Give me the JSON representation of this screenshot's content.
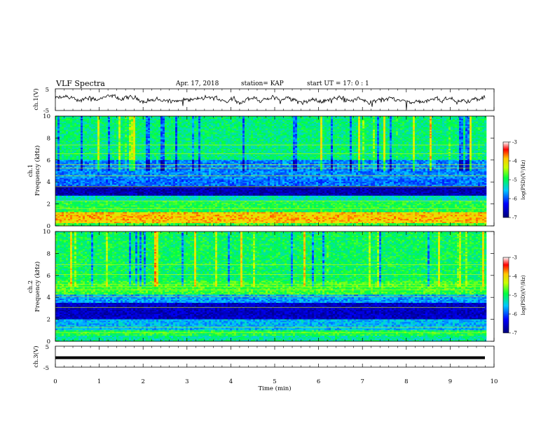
{
  "header": {
    "title": "VLF Spectra",
    "date": "Apr. 17, 2018",
    "station": "station= KAP",
    "start": "start  UT  =   17: 0  : 1"
  },
  "chart_data": [
    {
      "type": "line",
      "name": "ch1-waveform",
      "ylabel": "ch.1(V)",
      "ylim": [
        -5,
        5
      ],
      "yticks": [
        "5",
        "-5"
      ],
      "xlim": [
        0,
        10
      ]
    },
    {
      "type": "heatmap",
      "name": "ch1-spectrogram",
      "ylabel_line1": "ch.1",
      "ylabel_line2": "Frequency  (kHz)",
      "ylim": [
        0,
        10
      ],
      "yticks": [
        "0",
        "2",
        "4",
        "6",
        "8",
        "10"
      ],
      "xlim": [
        0,
        10
      ],
      "colorbar": {
        "label": "log(PSD)(V²/Hz)",
        "range": [
          -7,
          -3
        ],
        "ticks": [
          "-3",
          "-4",
          "-5",
          "-6",
          "-7"
        ]
      }
    },
    {
      "type": "heatmap",
      "name": "ch2-spectrogram",
      "ylabel_line1": "ch.2",
      "ylabel_line2": "Frequency  (kHz)",
      "ylim": [
        0,
        10
      ],
      "yticks": [
        "0",
        "2",
        "4",
        "6",
        "8",
        "10"
      ],
      "xlim": [
        0,
        10
      ],
      "colorbar": {
        "label": "log(PSD)(V²/Hz)",
        "range": [
          -7,
          -3
        ],
        "ticks": [
          "-3",
          "-4",
          "-5",
          "-6",
          "-7"
        ]
      }
    },
    {
      "type": "line",
      "name": "ch3-waveform",
      "ylabel": "ch.3(V)",
      "ylim": [
        -5,
        5
      ],
      "yticks": [
        "5",
        "-5"
      ],
      "xlim": [
        0,
        10
      ],
      "constant_value": 0
    }
  ],
  "xaxis": {
    "label": "Time  (min)",
    "ticks": [
      "0",
      "1",
      "2",
      "3",
      "4",
      "5",
      "6",
      "7",
      "8",
      "9",
      "10"
    ]
  }
}
